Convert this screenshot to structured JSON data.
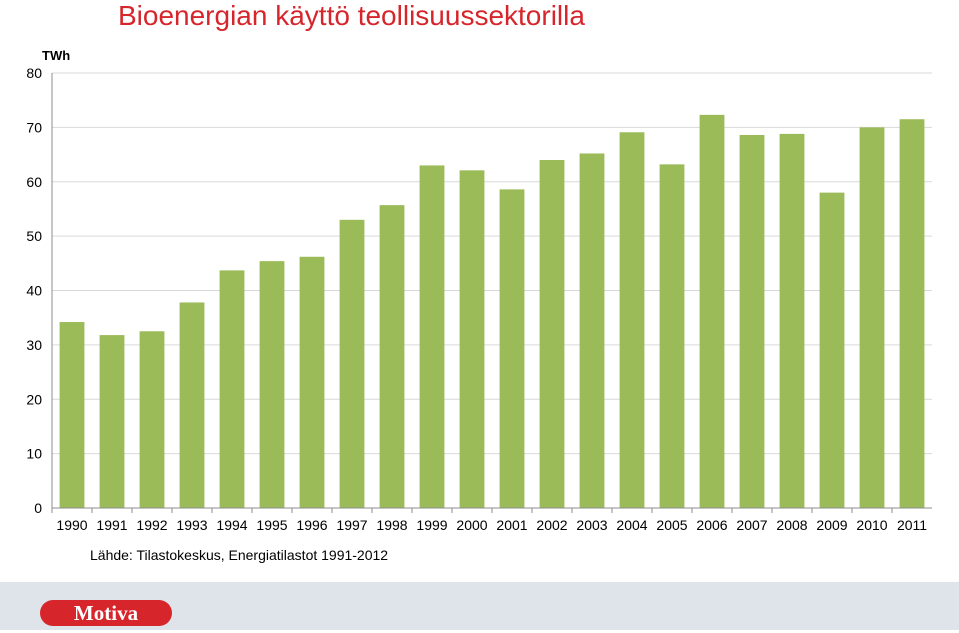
{
  "title": "Bioenergian käyttö teollisuussektorilla",
  "source": "Lähde: Tilastokeskus, Energiatilastot 1991-2012",
  "logo_text": "Motiva",
  "colors": {
    "bar": "#9bbb59",
    "title": "#d6262c",
    "logo": "#d6262c",
    "footer": "#dfe3ea"
  },
  "chart_data": {
    "type": "bar",
    "ylabel": "TWh",
    "ylim": [
      0,
      80
    ],
    "yticks": [
      0,
      10,
      20,
      30,
      40,
      50,
      60,
      70,
      80
    ],
    "grid": true,
    "categories": [
      "1990",
      "1991",
      "1992",
      "1993",
      "1994",
      "1995",
      "1996",
      "1997",
      "1998",
      "1999",
      "2000",
      "2001",
      "2002",
      "2003",
      "2004",
      "2005",
      "2006",
      "2007",
      "2008",
      "2009",
      "2010",
      "2011"
    ],
    "values": [
      34.2,
      31.8,
      32.5,
      37.8,
      43.7,
      45.4,
      46.2,
      53.0,
      55.7,
      63.0,
      62.1,
      58.6,
      64.0,
      65.2,
      69.1,
      63.2,
      72.3,
      68.6,
      68.8,
      58.0,
      70.0,
      71.5
    ]
  }
}
